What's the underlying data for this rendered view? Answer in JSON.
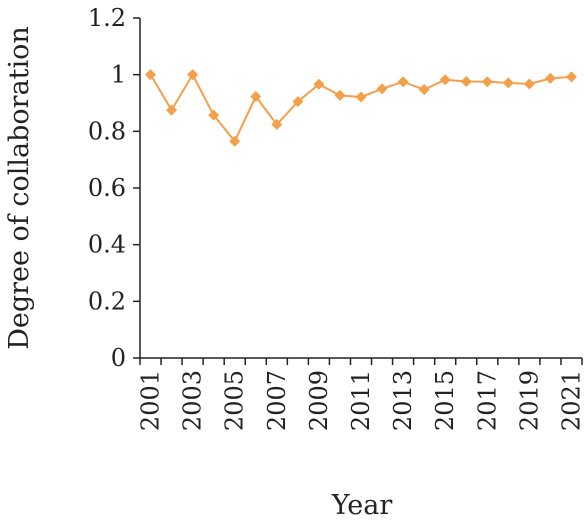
{
  "chart_data": {
    "type": "line",
    "title": "",
    "xlabel": "Year",
    "ylabel": "Degree of collaboration",
    "ylim": [
      0,
      1.2
    ],
    "yticks": [
      "0",
      "0.2",
      "0.4",
      "0.6",
      "0.8",
      "1",
      "1.2"
    ],
    "x": [
      2001,
      2002,
      2003,
      2004,
      2005,
      2006,
      2007,
      2008,
      2009,
      2010,
      2011,
      2012,
      2013,
      2014,
      2015,
      2016,
      2017,
      2018,
      2019,
      2020,
      2021
    ],
    "xtick_labels": [
      "2001",
      "2003",
      "2005",
      "2007",
      "2009",
      "2011",
      "2013",
      "2015",
      "2017",
      "2019",
      "2021"
    ],
    "grid": false,
    "series": [
      {
        "color": "#F4A04A",
        "marker": "diamond",
        "values": [
          1.0,
          0.875,
          1.0,
          0.857,
          0.765,
          0.923,
          0.824,
          0.905,
          0.966,
          0.927,
          0.921,
          0.95,
          0.975,
          0.947,
          0.982,
          0.976,
          0.975,
          0.971,
          0.967,
          0.987,
          0.992
        ]
      }
    ]
  }
}
